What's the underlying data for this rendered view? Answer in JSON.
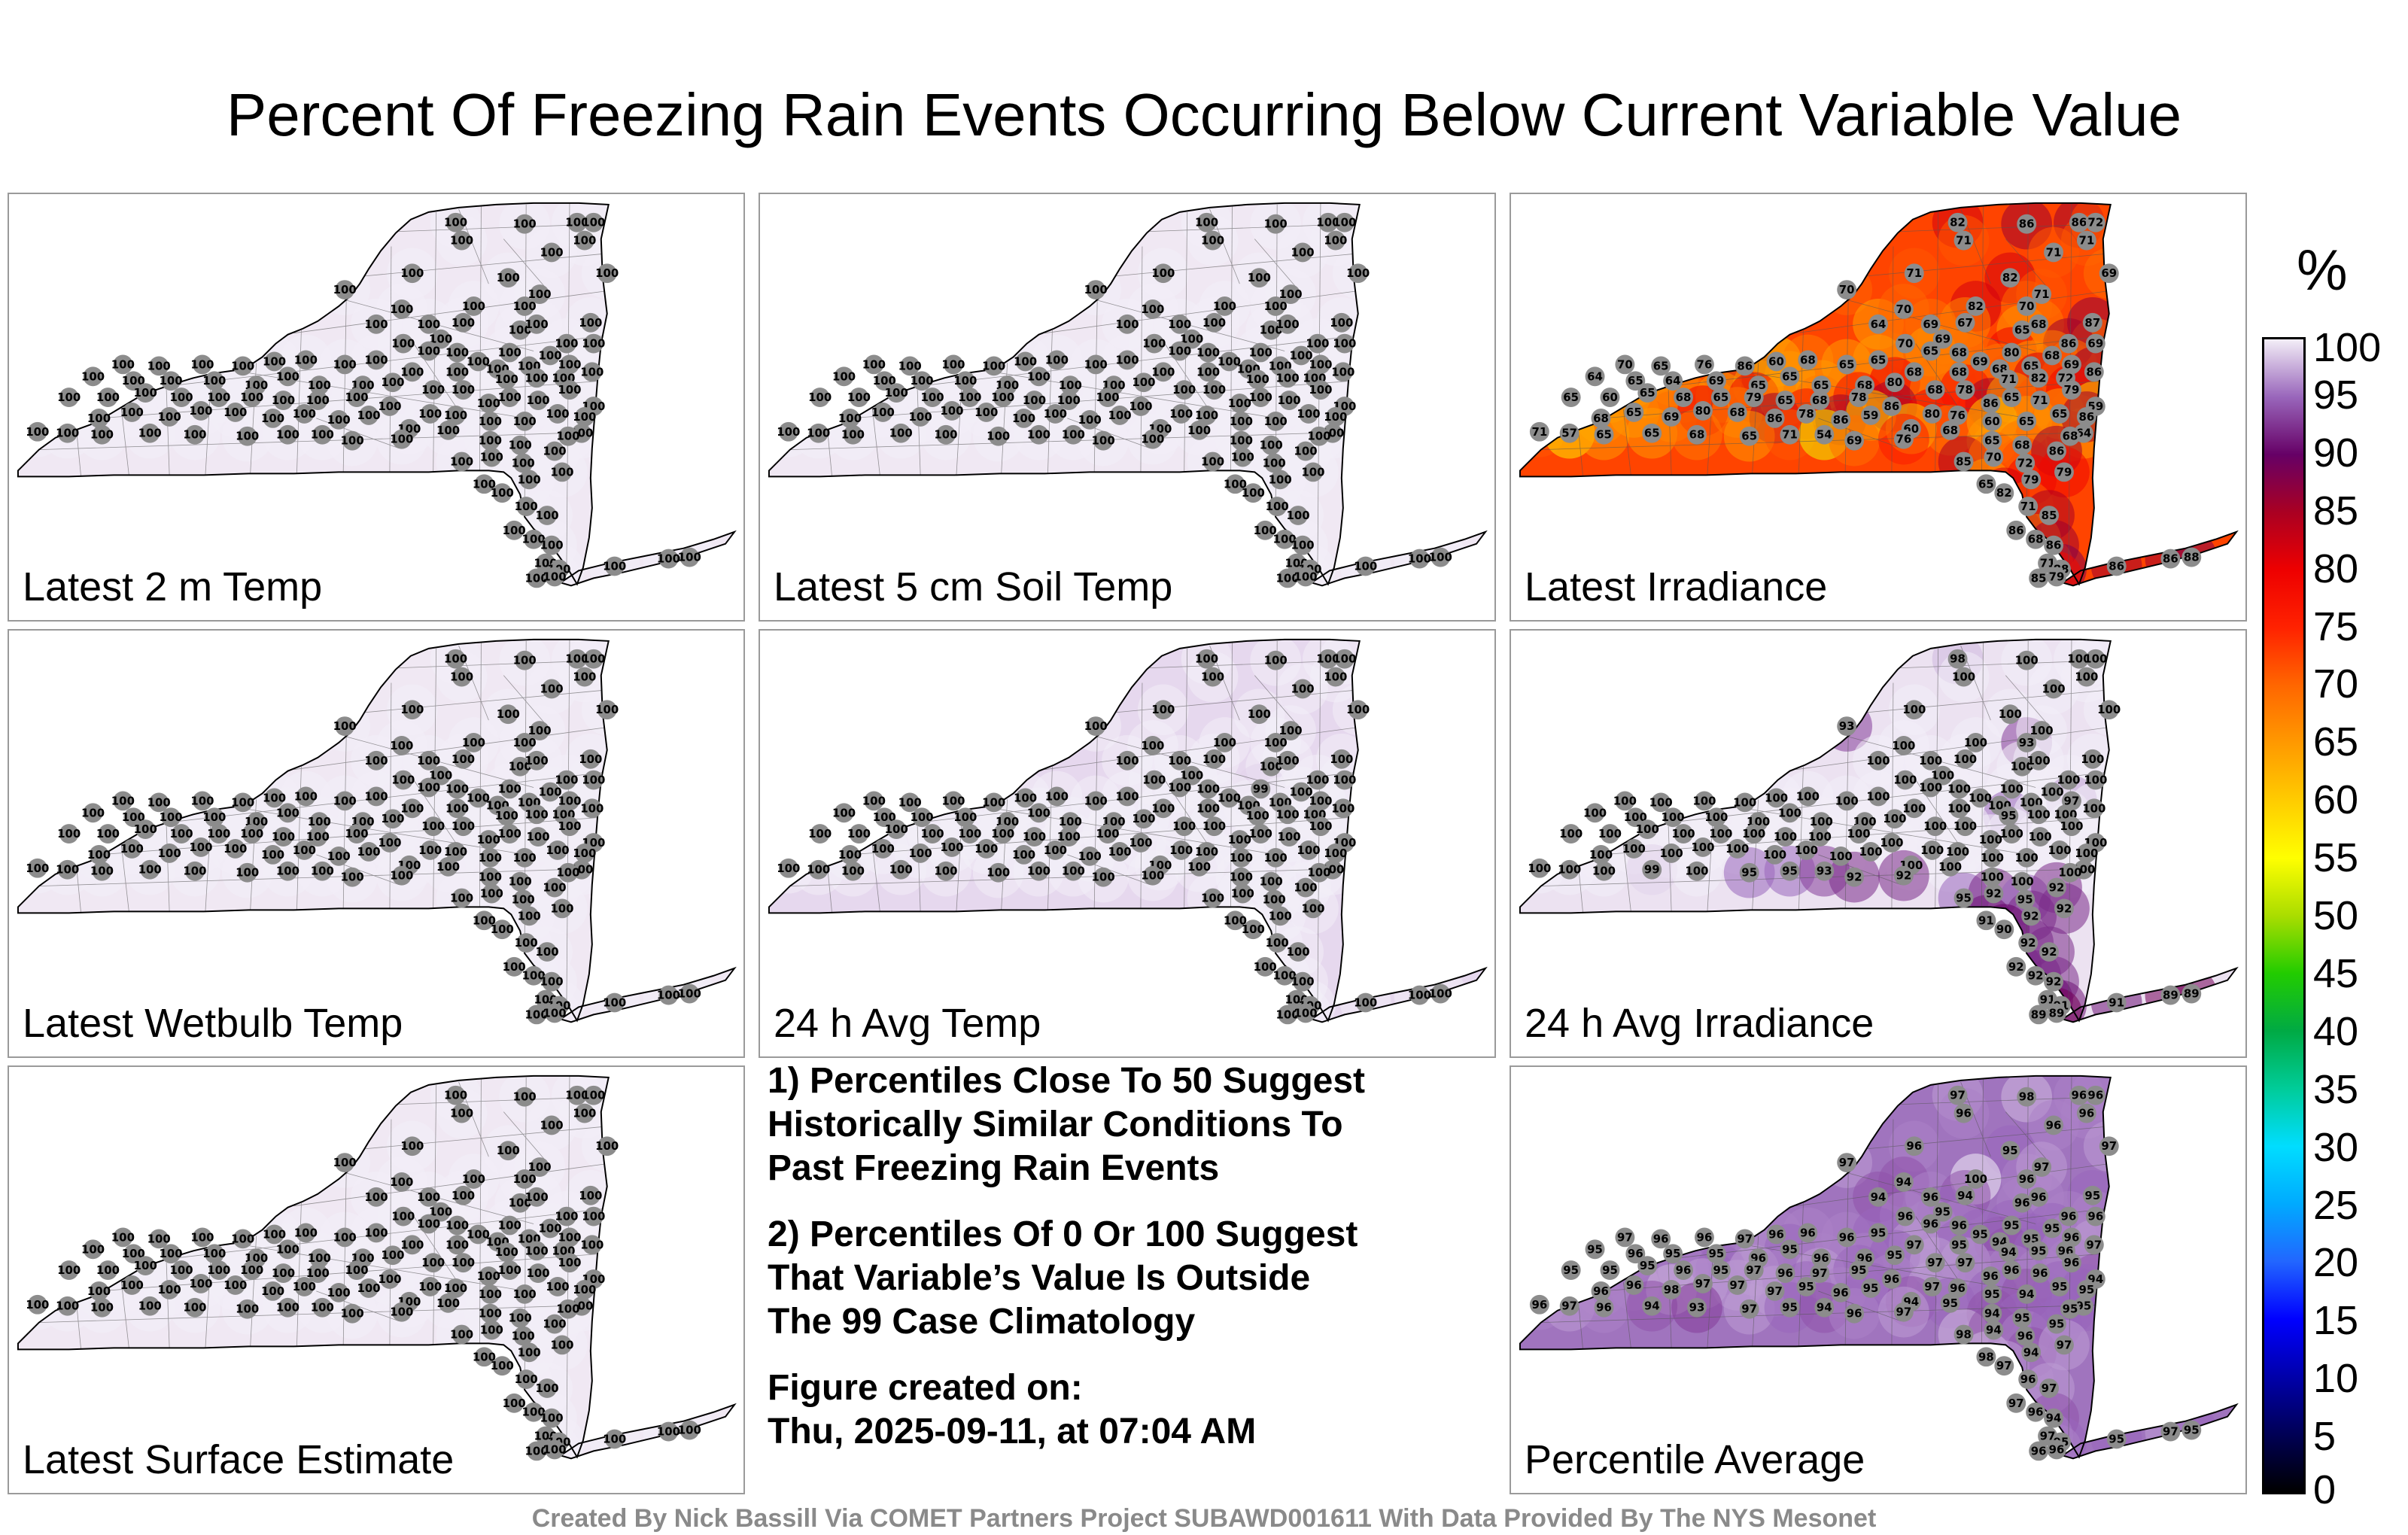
{
  "title": "Percent Of Freezing Rain Events Occurring Below Current Variable Value",
  "panels": [
    {
      "label": "Latest 2 m Temp",
      "fill": "#f0e8f3",
      "values": [
        100,
        100,
        100,
        100,
        100,
        100,
        100,
        100,
        100,
        100,
        100,
        100,
        100,
        100,
        100,
        100,
        100,
        100,
        100,
        100,
        100,
        100,
        100,
        100,
        100,
        100,
        100,
        100,
        100,
        100,
        100,
        100,
        100,
        100,
        100,
        100,
        100,
        100,
        100,
        100,
        100,
        100,
        100,
        100,
        100,
        100,
        100,
        100,
        100,
        100,
        100,
        100,
        100,
        100,
        100,
        100,
        100,
        100,
        100,
        100,
        100,
        100,
        100,
        100,
        100,
        100,
        100,
        100,
        100,
        100,
        100,
        100,
        100,
        100,
        100,
        100,
        100,
        100,
        100,
        100,
        100,
        100,
        100,
        100,
        100,
        100,
        100,
        100,
        100,
        100,
        100,
        100,
        100,
        100,
        100,
        100,
        100,
        100,
        100,
        100,
        100,
        100,
        100,
        100,
        100,
        100,
        100,
        100,
        100,
        100,
        100,
        100,
        100,
        100,
        100,
        100,
        100,
        100,
        100,
        100,
        100,
        100,
        100,
        100,
        100
      ]
    },
    {
      "label": "Latest 5 cm Soil Temp",
      "fill": "#f0e8f3",
      "values": [
        100,
        100,
        100,
        100,
        100,
        100,
        100,
        100,
        100,
        100,
        100,
        100,
        100,
        100,
        100,
        100,
        100,
        100,
        100,
        100,
        100,
        100,
        100,
        100,
        100,
        100,
        100,
        100,
        100,
        100,
        100,
        100,
        100,
        100,
        100,
        100,
        100,
        100,
        100,
        100,
        100,
        100,
        100,
        100,
        100,
        100,
        100,
        100,
        100,
        100,
        100,
        100,
        100,
        100,
        100,
        100,
        100,
        100,
        100,
        100,
        100,
        100,
        100,
        100,
        100,
        100,
        100,
        100,
        100,
        100,
        100,
        100,
        100,
        100,
        100,
        100,
        100,
        100,
        100,
        100,
        100,
        100,
        100,
        100,
        100,
        100,
        100,
        100,
        100,
        100,
        100,
        100,
        100,
        100,
        100,
        100,
        100,
        100,
        100,
        100,
        100,
        100,
        100,
        100,
        100,
        100,
        100,
        100,
        100,
        100,
        100,
        100,
        100,
        100,
        100,
        100,
        100,
        100,
        100,
        100,
        100,
        100,
        100,
        100,
        100
      ]
    },
    {
      "label": "Latest Irradiance",
      "fill": "#ff4400",
      "values": [
        82,
        86,
        86,
        72,
        71,
        71,
        71,
        70,
        71,
        82,
        69,
        82,
        70,
        71,
        87,
        65,
        64,
        70,
        69,
        67,
        68,
        69,
        69,
        70,
        65,
        68,
        80,
        86,
        68,
        68,
        65,
        68,
        69,
        70,
        65,
        76,
        86,
        60,
        68,
        65,
        65,
        68,
        69,
        71,
        82,
        72,
        86,
        64,
        65,
        64,
        69,
        65,
        65,
        65,
        68,
        80,
        68,
        78,
        86,
        65,
        71,
        79,
        59,
        65,
        60,
        65,
        68,
        65,
        79,
        65,
        68,
        78,
        86,
        80,
        76,
        60,
        65,
        65,
        64,
        68,
        65,
        69,
        80,
        68,
        86,
        78,
        86,
        59,
        60,
        68,
        65,
        68,
        68,
        86,
        71,
        57,
        65,
        65,
        68,
        65,
        71,
        54,
        69,
        76,
        85,
        70,
        72,
        86,
        79,
        79,
        65,
        82,
        71,
        85,
        86,
        68,
        86,
        71,
        88,
        85,
        79,
        86,
        86,
        88,
        88
      ]
    },
    {
      "label": "Latest Wetbulb Temp",
      "fill": "#f0e8f3",
      "values": [
        100,
        100,
        100,
        100,
        100,
        100,
        100,
        100,
        100,
        100,
        100,
        100,
        100,
        100,
        100,
        100,
        100,
        100,
        100,
        100,
        100,
        100,
        100,
        100,
        100,
        100,
        100,
        100,
        100,
        100,
        100,
        100,
        100,
        100,
        100,
        100,
        100,
        100,
        100,
        100,
        100,
        100,
        100,
        100,
        100,
        100,
        100,
        100,
        100,
        100,
        100,
        100,
        100,
        100,
        100,
        100,
        100,
        100,
        100,
        100,
        100,
        100,
        100,
        100,
        100,
        100,
        100,
        100,
        100,
        100,
        100,
        100,
        100,
        100,
        100,
        100,
        100,
        100,
        100,
        100,
        100,
        100,
        100,
        100,
        100,
        100,
        100,
        100,
        100,
        100,
        100,
        100,
        100,
        100,
        100,
        100,
        100,
        100,
        100,
        100,
        100,
        100,
        100,
        100,
        100,
        100,
        100,
        100,
        100,
        100,
        100,
        100,
        100,
        100,
        100,
        100,
        100,
        100,
        100,
        100,
        100,
        100,
        100,
        100,
        100
      ]
    },
    {
      "label": "24 h Avg Temp",
      "fill": "#e6d8ee",
      "values": [
        100,
        100,
        100,
        100,
        100,
        100,
        100,
        100,
        100,
        100,
        100,
        100,
        100,
        100,
        100,
        100,
        100,
        100,
        100,
        100,
        100,
        100,
        100,
        100,
        100,
        100,
        99,
        100,
        100,
        100,
        100,
        100,
        100,
        100,
        100,
        100,
        100,
        100,
        100,
        100,
        100,
        100,
        100,
        100,
        100,
        100,
        100,
        100,
        100,
        100,
        100,
        100,
        100,
        100,
        100,
        100,
        100,
        100,
        100,
        100,
        100,
        100,
        100,
        100,
        100,
        100,
        100,
        100,
        100,
        100,
        100,
        100,
        100,
        100,
        100,
        100,
        100,
        100,
        100,
        100,
        100,
        100,
        100,
        100,
        100,
        100,
        100,
        100,
        100,
        100,
        100,
        100,
        100,
        100,
        100,
        100,
        100,
        100,
        100,
        100,
        100,
        100,
        100,
        100,
        100,
        100,
        100,
        100,
        100,
        100,
        100,
        100,
        100,
        100,
        100,
        100,
        100,
        100,
        100,
        100,
        100,
        100,
        100,
        100,
        100
      ]
    },
    {
      "label": "24 h Avg Irradiance",
      "fill": "#ece2f1",
      "values": [
        98,
        100,
        100,
        100,
        100,
        100,
        100,
        93,
        100,
        100,
        100,
        100,
        93,
        100,
        100,
        100,
        100,
        100,
        100,
        100,
        100,
        100,
        100,
        100,
        100,
        100,
        100,
        100,
        100,
        100,
        100,
        100,
        97,
        100,
        100,
        100,
        100,
        100,
        100,
        100,
        100,
        100,
        100,
        95,
        100,
        100,
        100,
        100,
        100,
        100,
        100,
        100,
        100,
        100,
        100,
        100,
        100,
        100,
        100,
        100,
        100,
        100,
        100,
        100,
        100,
        100,
        100,
        100,
        100,
        100,
        100,
        100,
        100,
        100,
        100,
        100,
        100,
        100,
        100,
        100,
        100,
        100,
        100,
        100,
        100,
        100,
        100,
        100,
        100,
        100,
        100,
        100,
        100,
        100,
        100,
        100,
        100,
        99,
        100,
        95,
        95,
        93,
        92,
        92,
        95,
        92,
        95,
        92,
        92,
        92,
        91,
        90,
        92,
        92,
        92,
        92,
        92,
        91,
        91,
        89,
        89,
        91,
        89,
        89,
        92
      ]
    },
    {
      "label": "Latest Surface Estimate",
      "fill": "#f0e8f3",
      "values": [
        100,
        100,
        100,
        100,
        100,
        100,
        100,
        100,
        100,
        100,
        100,
        100,
        100,
        100,
        100,
        100,
        100,
        100,
        100,
        100,
        100,
        100,
        100,
        100,
        100,
        100,
        100,
        100,
        100,
        100,
        100,
        100,
        100,
        100,
        100,
        100,
        100,
        100,
        100,
        100,
        100,
        100,
        100,
        100,
        100,
        100,
        100,
        100,
        100,
        100,
        100,
        100,
        100,
        100,
        100,
        100,
        100,
        100,
        100,
        100,
        100,
        100,
        100,
        100,
        100,
        100,
        100,
        100,
        100,
        100,
        100,
        100,
        100,
        100,
        100,
        100,
        100,
        100,
        100,
        100,
        100,
        100,
        100,
        100,
        100,
        100,
        100,
        100,
        100,
        100,
        100,
        100,
        100,
        100,
        100,
        100,
        100,
        100,
        100,
        100,
        100,
        100,
        100,
        100,
        100,
        100,
        100,
        100,
        100,
        100,
        100,
        100,
        100,
        100,
        100,
        100,
        100,
        100,
        100,
        100,
        100,
        100,
        100,
        100,
        100
      ]
    },
    {
      "label": "Percentile Average",
      "fill": "#a074be",
      "values": [
        97,
        98,
        96,
        96,
        96,
        96,
        96,
        97,
        96,
        95,
        97,
        100,
        96,
        97,
        95,
        96,
        94,
        94,
        96,
        94,
        96,
        96,
        95,
        96,
        96,
        96,
        95,
        96,
        95,
        94,
        95,
        95,
        96,
        97,
        96,
        96,
        97,
        96,
        96,
        96,
        95,
        97,
        95,
        94,
        95,
        96,
        97,
        95,
        96,
        95,
        95,
        96,
        95,
        96,
        96,
        95,
        97,
        97,
        96,
        96,
        96,
        96,
        94,
        95,
        95,
        95,
        96,
        95,
        97,
        96,
        97,
        95,
        96,
        97,
        96,
        95,
        94,
        95,
        95,
        96,
        96,
        98,
        97,
        97,
        97,
        95,
        96,
        95,
        94,
        95,
        94,
        95,
        95,
        95,
        96,
        97,
        96,
        94,
        93,
        97,
        95,
        94,
        96,
        97,
        98,
        94,
        96,
        95,
        94,
        97,
        98,
        97,
        96,
        97,
        97,
        96,
        94,
        97,
        95,
        96,
        96,
        95,
        97,
        95,
        95
      ]
    }
  ],
  "notes": [
    [
      "1) Percentiles Close To 50 Suggest",
      "Historically Similar Conditions To",
      "Past Freezing Rain Events"
    ],
    [
      "2) Percentiles Of 0 Or 100 Suggest",
      "That Variable’s Value Is Outside",
      "The 99 Case Climatology"
    ],
    [
      "Figure created on:",
      "Thu, 2025-09-11, at 07:04 AM"
    ]
  ],
  "colorbar": {
    "unit": "%",
    "ticks": [
      "100",
      "95",
      "90",
      "85",
      "80",
      "75",
      "70",
      "65",
      "60",
      "55",
      "50",
      "45",
      "40",
      "35",
      "30",
      "25",
      "20",
      "15",
      "10",
      "5",
      "0"
    ],
    "stops": [
      {
        "v": 0,
        "c": "#000000"
      },
      {
        "v": 5,
        "c": "#000055"
      },
      {
        "v": 10,
        "c": "#0000aa"
      },
      {
        "v": 15,
        "c": "#0000ff"
      },
      {
        "v": 20,
        "c": "#2266ff"
      },
      {
        "v": 25,
        "c": "#00aaff"
      },
      {
        "v": 30,
        "c": "#00ddff"
      },
      {
        "v": 35,
        "c": "#00cc99"
      },
      {
        "v": 40,
        "c": "#00aa44"
      },
      {
        "v": 45,
        "c": "#22cc00"
      },
      {
        "v": 50,
        "c": "#aadd00"
      },
      {
        "v": 55,
        "c": "#ffff00"
      },
      {
        "v": 60,
        "c": "#ffcc00"
      },
      {
        "v": 65,
        "c": "#ff9900"
      },
      {
        "v": 70,
        "c": "#ff6600"
      },
      {
        "v": 75,
        "c": "#ff2200"
      },
      {
        "v": 80,
        "c": "#ee0000"
      },
      {
        "v": 85,
        "c": "#aa0022"
      },
      {
        "v": 90,
        "c": "#660066"
      },
      {
        "v": 95,
        "c": "#9966bb"
      },
      {
        "v": 100,
        "c": "#f3eef7"
      }
    ]
  },
  "credit": "Created By Nick Bassill Via COMET Partners Project SUBAWD001611 With Data Provided By The NYS Mesonet"
}
